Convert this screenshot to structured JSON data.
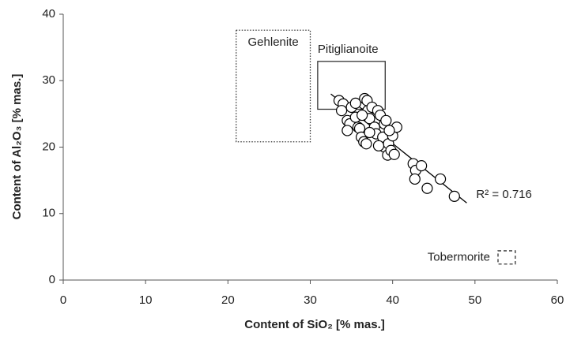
{
  "chart_data": {
    "type": "scatter",
    "xlabel": "Content of SiO₂ [% mas.]",
    "ylabel": "Content of Al₂O₃ [% mas.]",
    "xlim": [
      0,
      60
    ],
    "xticks": [
      0,
      10,
      20,
      30,
      40,
      50,
      60
    ],
    "ylim": [
      0,
      40
    ],
    "yticks": [
      0,
      10,
      20,
      30,
      40
    ],
    "grid": false,
    "series": [
      {
        "color": "#000000",
        "x": [
          33.5,
          34,
          33.8,
          35,
          34.5,
          34.8,
          34.5,
          35.5,
          35.8,
          36,
          36.2,
          36.5,
          36.8,
          36.5,
          36.6,
          36.9,
          37,
          37.2,
          37.5,
          37.8,
          38,
          38.2,
          38.5,
          38.8,
          39,
          39.2,
          39,
          39.5,
          39.4,
          39.8,
          40,
          40.2,
          40.5,
          39.6,
          38.3,
          37.2,
          42.5,
          42.8,
          43.5,
          42.7,
          44.2,
          45.8,
          47.5,
          35.5,
          36.3
        ],
        "values": [
          27.0,
          26.5,
          25.5,
          26,
          24,
          23.5,
          22.5,
          24.5,
          23,
          22.8,
          21.5,
          20.8,
          20.5,
          26.5,
          27.3,
          27,
          25.5,
          24.3,
          26,
          23,
          22,
          25.5,
          24.8,
          21.5,
          23.5,
          24,
          20,
          20.5,
          18.8,
          19.5,
          21.7,
          18.9,
          23,
          22.5,
          20.2,
          22.2,
          17.5,
          16.5,
          17.2,
          15.2,
          13.8,
          15.2,
          12.6,
          26.6,
          24.8
        ]
      }
    ],
    "trendline": {
      "x": [
        32.5,
        49
      ],
      "y": [
        28,
        11.6
      ],
      "label": "R² = 0.716"
    },
    "regions": [
      {
        "label": "Gehlenite",
        "x": [
          21,
          30
        ],
        "y": [
          20.8,
          37.6
        ],
        "style": "dotted"
      },
      {
        "label": "Pitiglianoite",
        "x": [
          30.9,
          39.1
        ],
        "y": [
          25.7,
          32.9
        ],
        "style": "solid"
      },
      {
        "label": "Tobermorite",
        "x": [
          52.8,
          54.9
        ],
        "y": [
          2.4,
          4.4
        ],
        "style": "dashed"
      }
    ]
  }
}
